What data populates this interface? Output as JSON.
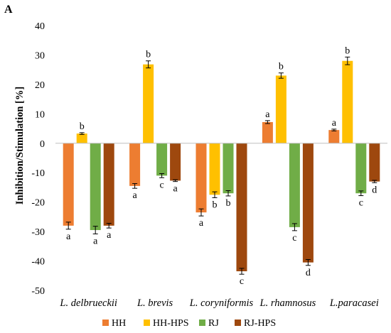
{
  "chart_data": {
    "type": "bar",
    "panel_label": "A",
    "title": "",
    "xlabel": "",
    "ylabel": "Inhibition/Stimulation [%]",
    "ylim": [
      -50,
      40
    ],
    "yticks": [
      40,
      30,
      20,
      10,
      0,
      -10,
      -20,
      -30,
      -40,
      -50
    ],
    "grid": false,
    "legend_position": "bottom",
    "categories": [
      "L. delbrueckii",
      "L. brevis",
      "L. coryniformis",
      "L. rhamnosus",
      "L.paracasei"
    ],
    "series": [
      {
        "name": "HH",
        "color": "#ED7D31",
        "values": [
          -28,
          -14.5,
          -23.5,
          7.2,
          4.5
        ],
        "errors": [
          1.2,
          0.8,
          1.2,
          0.5,
          0.3
        ],
        "letters": [
          "a",
          "a",
          "a",
          "a",
          "a"
        ]
      },
      {
        "name": "HH-HPS",
        "color": "#FFC000",
        "values": [
          3.3,
          26.8,
          -17.5,
          23,
          28
        ],
        "errors": [
          0.3,
          1.2,
          1.0,
          0.9,
          1.3
        ],
        "letters": [
          "b",
          "b",
          "b",
          "b",
          "b"
        ]
      },
      {
        "name": "RJ",
        "color": "#70AD47",
        "values": [
          -29.5,
          -11,
          -17,
          -28.5,
          -17
        ],
        "errors": [
          1.3,
          0.7,
          0.9,
          1.2,
          0.8
        ],
        "letters": [
          "a",
          "c",
          "b",
          "c",
          "c"
        ]
      },
      {
        "name": "RJ-HPS",
        "color": "#9E480E",
        "values": [
          -28,
          -12.7,
          -43.5,
          -40.5,
          -13
        ],
        "errors": [
          0.8,
          0.3,
          1.0,
          1.0,
          0.4
        ],
        "letters": [
          "a",
          "a",
          "c",
          "d",
          "d"
        ]
      }
    ]
  }
}
